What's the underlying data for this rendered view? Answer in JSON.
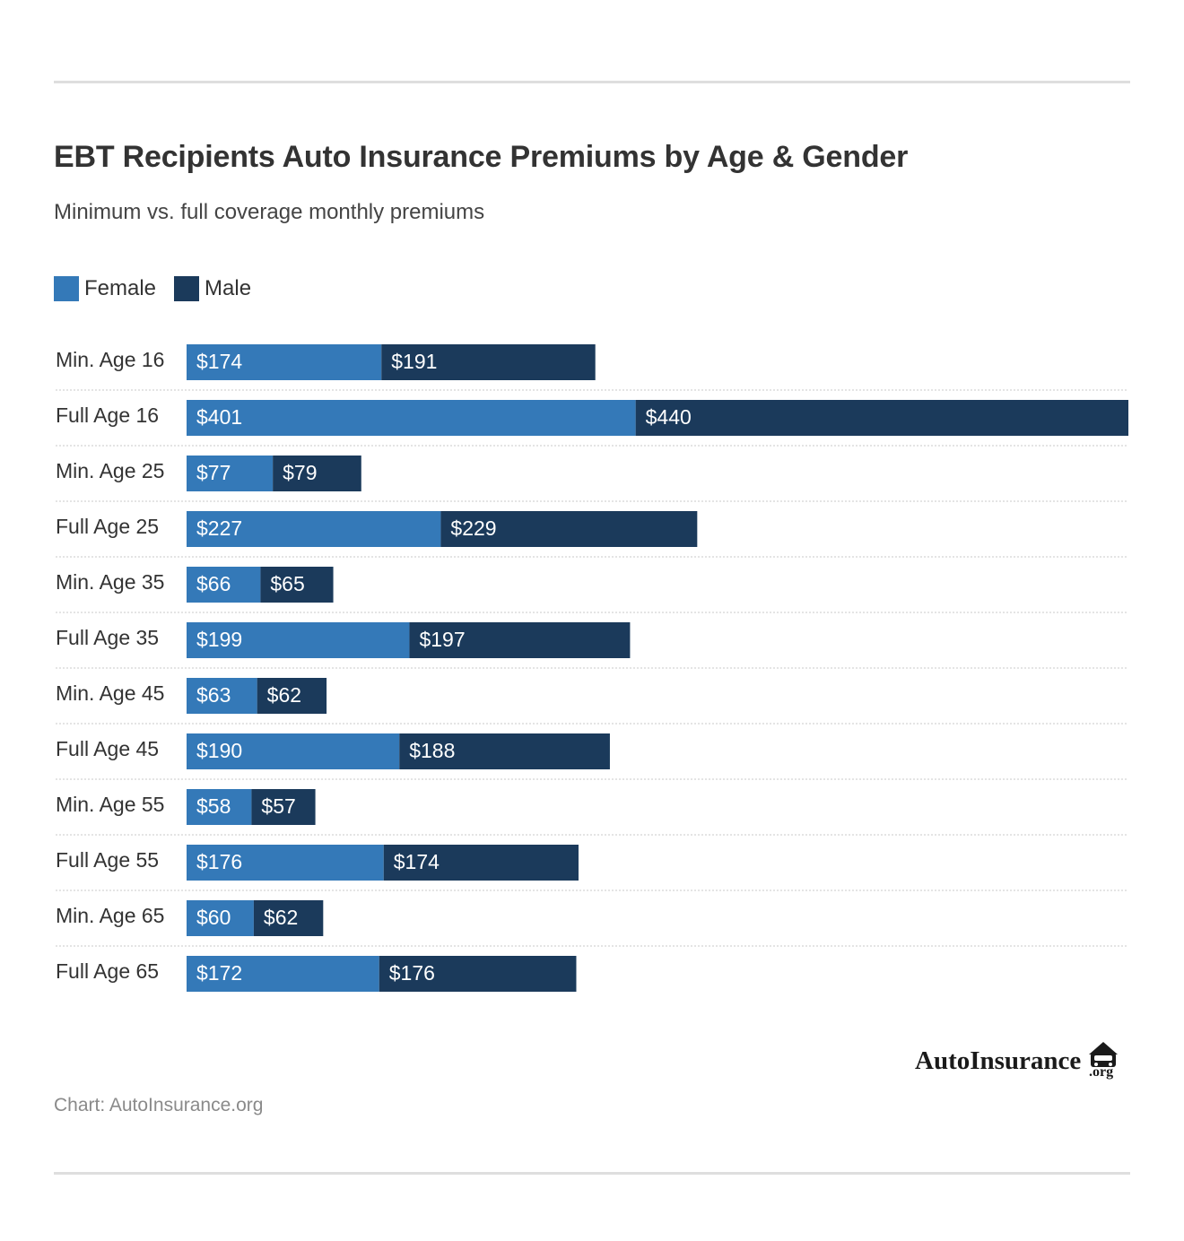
{
  "title": "EBT Recipients Auto Insurance Premiums by Age & Gender",
  "subtitle": "Minimum vs. full coverage monthly premiums",
  "legend": [
    {
      "label": "Female",
      "color": "#3479b8"
    },
    {
      "label": "Male",
      "color": "#1b3a5b"
    }
  ],
  "footer": {
    "source": "Chart: AutoInsurance.org"
  },
  "logo": {
    "text": "AutoInsurance",
    "suffix": ".org",
    "icon": "car-icon"
  },
  "chart_data": {
    "type": "bar",
    "orientation": "horizontal",
    "stacked": true,
    "categories": [
      "Min. Age 16",
      "Full Age 16",
      "Min. Age 25",
      "Full Age 25",
      "Min. Age 35",
      "Full Age 35",
      "Min. Age 45",
      "Full Age 45",
      "Min. Age 55",
      "Full Age 55",
      "Min. Age 65",
      "Full Age 65"
    ],
    "series": [
      {
        "name": "Female",
        "color": "#3479b8",
        "values": [
          174,
          401,
          77,
          227,
          66,
          199,
          63,
          190,
          58,
          176,
          60,
          172
        ],
        "labels": [
          "$174",
          "$401",
          "$77",
          "$227",
          "$66",
          "$199",
          "$63",
          "$190",
          "$58",
          "$176",
          "$60",
          "$172"
        ]
      },
      {
        "name": "Male",
        "color": "#1b3a5b",
        "values": [
          191,
          440,
          79,
          229,
          65,
          197,
          62,
          188,
          57,
          174,
          62,
          176
        ],
        "labels": [
          "$191",
          "$440",
          "$79",
          "$229",
          "$65",
          "$197",
          "$62",
          "$188",
          "$57",
          "$174",
          "$62",
          "$176"
        ]
      }
    ],
    "xlim": [
      0,
      841
    ],
    "grid": false,
    "row_separators": "dotted",
    "legend_position": "top-left"
  }
}
